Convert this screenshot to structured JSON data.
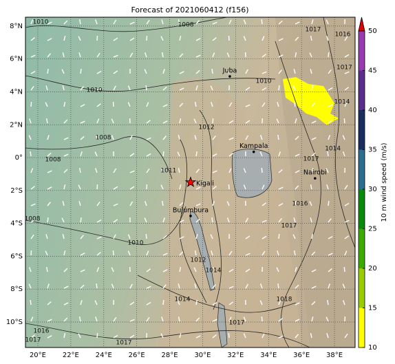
{
  "title": "Forecast of 2021060412 (f156)",
  "map": {
    "xlim": [
      19.25,
      39.25
    ],
    "ylim": [
      -11.55,
      8.54
    ],
    "xticks": [
      {
        "value": 20,
        "label": "20°E"
      },
      {
        "value": 22,
        "label": "22°E"
      },
      {
        "value": 24,
        "label": "24°E"
      },
      {
        "value": 26,
        "label": "26°E"
      },
      {
        "value": 28,
        "label": "28°E"
      },
      {
        "value": 30,
        "label": "30°E"
      },
      {
        "value": 32,
        "label": "32°E"
      },
      {
        "value": 34,
        "label": "34°E"
      },
      {
        "value": 36,
        "label": "36°E"
      },
      {
        "value": 38,
        "label": "38°E"
      }
    ],
    "yticks": [
      {
        "value": 8,
        "label": "8°N"
      },
      {
        "value": 6,
        "label": "6°N"
      },
      {
        "value": 4,
        "label": "4°N"
      },
      {
        "value": 2,
        "label": "2°N"
      },
      {
        "value": 0,
        "label": "0°"
      },
      {
        "value": -2,
        "label": "2°S"
      },
      {
        "value": -4,
        "label": "4°S"
      },
      {
        "value": -6,
        "label": "6°S"
      },
      {
        "value": -8,
        "label": "8°S"
      },
      {
        "value": -10,
        "label": "10°S"
      }
    ],
    "grid": true,
    "cities": [
      {
        "name": "Juba",
        "lon": 31.65,
        "lat": 4.94
      },
      {
        "name": "Kampala",
        "lon": 33.1,
        "lat": 0.35
      },
      {
        "name": "Nairobi",
        "lon": 36.82,
        "lat": -1.26
      },
      {
        "name": "Bujumbura",
        "lon": 29.27,
        "lat": -3.55
      }
    ],
    "marker": {
      "name": "Kigali",
      "lon": 29.27,
      "lat": -1.5,
      "color": "#ff0000"
    },
    "contour_labels": [
      {
        "label": "1010",
        "lon": 20.17,
        "lat": 8.25
      },
      {
        "label": "1008",
        "lon": 28.98,
        "lat": 8.08
      },
      {
        "label": "1010",
        "lon": 23.43,
        "lat": 4.1
      },
      {
        "label": "1008",
        "lon": 23.97,
        "lat": 1.22
      },
      {
        "label": "1008",
        "lon": 20.92,
        "lat": -0.12
      },
      {
        "label": "1008",
        "lon": 19.67,
        "lat": -3.72
      },
      {
        "label": "1010",
        "lon": 25.93,
        "lat": -5.18
      },
      {
        "label": "1011",
        "lon": 27.93,
        "lat": -0.79
      },
      {
        "label": "1012",
        "lon": 30.23,
        "lat": 1.85
      },
      {
        "label": "1010",
        "lon": 33.7,
        "lat": 4.65
      },
      {
        "label": "1017",
        "lon": 36.7,
        "lat": 7.79
      },
      {
        "label": "1016",
        "lon": 38.5,
        "lat": 7.5
      },
      {
        "label": "1017",
        "lon": 38.6,
        "lat": 5.49
      },
      {
        "label": "1014",
        "lon": 38.46,
        "lat": 3.39
      },
      {
        "label": "1014",
        "lon": 37.9,
        "lat": 0.55
      },
      {
        "label": "1017",
        "lon": 36.58,
        "lat": -0.08
      },
      {
        "label": "1016",
        "lon": 35.91,
        "lat": -2.8
      },
      {
        "label": "1017",
        "lon": 35.24,
        "lat": -4.14
      },
      {
        "label": "1012",
        "lon": 29.73,
        "lat": -6.23
      },
      {
        "label": "1014",
        "lon": 30.65,
        "lat": -6.86
      },
      {
        "label": "1014",
        "lon": 28.77,
        "lat": -8.62
      },
      {
        "label": "1018",
        "lon": 34.95,
        "lat": -8.62
      },
      {
        "label": "1017",
        "lon": 32.07,
        "lat": -10.04
      },
      {
        "label": "1016",
        "lon": 20.21,
        "lat": -10.54
      },
      {
        "label": "1017",
        "lon": 19.71,
        "lat": -11.08
      },
      {
        "label": "1017",
        "lon": 25.22,
        "lat": -11.25
      }
    ]
  },
  "colorbar": {
    "label": "10 m wind speed (m/s)",
    "lim": [
      10,
      50
    ],
    "ticks": [
      10,
      15,
      20,
      25,
      30,
      35,
      40,
      45,
      50
    ],
    "colors": [
      "#ffff00",
      "#9acd00",
      "#3cab00",
      "#0a8a0a",
      "#2c6e8e",
      "#1b2d5e",
      "#5b2e8c",
      "#9a3ab0"
    ],
    "extend_color": "#e00000"
  }
}
